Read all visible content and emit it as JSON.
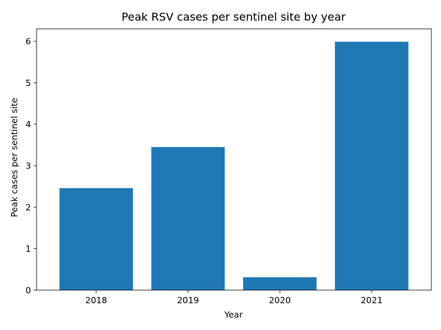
{
  "chart_data": {
    "type": "bar",
    "title": "Peak RSV cases per sentinel site by year",
    "xlabel": "Year",
    "ylabel": "Peak cases per sentinel site",
    "categories": [
      "2018",
      "2019",
      "2020",
      "2021"
    ],
    "values": [
      2.46,
      3.45,
      0.31,
      5.99
    ],
    "ylim": [
      0,
      6.3
    ],
    "yticks": [
      0,
      1,
      2,
      3,
      4,
      5,
      6
    ],
    "grid": false,
    "bar_color": "#1f77b4"
  }
}
